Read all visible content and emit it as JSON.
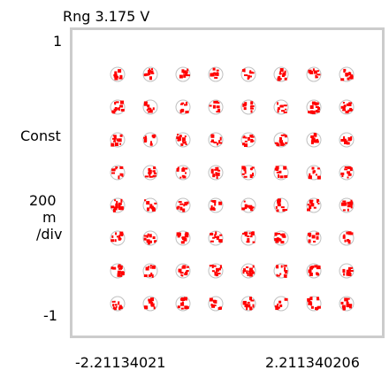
{
  "display": {
    "range_label": "Rng 3.175  V",
    "y_top": "1",
    "y_bottom": "-1",
    "y_scale": {
      "line1": "Const",
      "line2": "200",
      "line3": "m",
      "line4": "/div"
    },
    "x_left": "-2.21134021",
    "x_right": "2.211340206"
  },
  "colors": {
    "frame": "#cccccc",
    "symbol_target": "#c0c0c0",
    "symbol_hits": "#ff0000",
    "text": "#000000"
  },
  "chart_data": {
    "type": "scatter",
    "constellation": "64-QAM",
    "grid_size": 8,
    "levels": [
      -7,
      -5,
      -3,
      -1,
      1,
      3,
      5,
      7
    ],
    "series": [
      {
        "values_note": "measured symbol clusters at each ideal constellation point",
        "points": [
          {
            "i": -7,
            "q": 7
          },
          {
            "i": -5,
            "q": 7
          },
          {
            "i": -3,
            "q": 7
          },
          {
            "i": -1,
            "q": 7
          },
          {
            "i": 1,
            "q": 7
          },
          {
            "i": 3,
            "q": 7
          },
          {
            "i": 5,
            "q": 7
          },
          {
            "i": 7,
            "q": 7
          },
          {
            "i": -7,
            "q": 5
          },
          {
            "i": -5,
            "q": 5
          },
          {
            "i": -3,
            "q": 5
          },
          {
            "i": -1,
            "q": 5
          },
          {
            "i": 1,
            "q": 5
          },
          {
            "i": 3,
            "q": 5
          },
          {
            "i": 5,
            "q": 5
          },
          {
            "i": 7,
            "q": 5
          },
          {
            "i": -7,
            "q": 3
          },
          {
            "i": -5,
            "q": 3
          },
          {
            "i": -3,
            "q": 3
          },
          {
            "i": -1,
            "q": 3
          },
          {
            "i": 1,
            "q": 3
          },
          {
            "i": 3,
            "q": 3
          },
          {
            "i": 5,
            "q": 3
          },
          {
            "i": 7,
            "q": 3
          },
          {
            "i": -7,
            "q": 1
          },
          {
            "i": -5,
            "q": 1
          },
          {
            "i": -3,
            "q": 1
          },
          {
            "i": -1,
            "q": 1
          },
          {
            "i": 1,
            "q": 1
          },
          {
            "i": 3,
            "q": 1
          },
          {
            "i": 5,
            "q": 1
          },
          {
            "i": 7,
            "q": 1
          },
          {
            "i": -7,
            "q": -1
          },
          {
            "i": -5,
            "q": -1
          },
          {
            "i": -3,
            "q": -1
          },
          {
            "i": -1,
            "q": -1
          },
          {
            "i": 1,
            "q": -1
          },
          {
            "i": 3,
            "q": -1
          },
          {
            "i": 5,
            "q": -1
          },
          {
            "i": 7,
            "q": -1
          },
          {
            "i": -7,
            "q": -3
          },
          {
            "i": -5,
            "q": -3
          },
          {
            "i": -3,
            "q": -3
          },
          {
            "i": -1,
            "q": -3
          },
          {
            "i": 1,
            "q": -3
          },
          {
            "i": 3,
            "q": -3
          },
          {
            "i": 5,
            "q": -3
          },
          {
            "i": 7,
            "q": -3
          },
          {
            "i": -7,
            "q": -5
          },
          {
            "i": -5,
            "q": -5
          },
          {
            "i": -3,
            "q": -5
          },
          {
            "i": -1,
            "q": -5
          },
          {
            "i": 1,
            "q": -5
          },
          {
            "i": 3,
            "q": -5
          },
          {
            "i": 5,
            "q": -5
          },
          {
            "i": 7,
            "q": -5
          },
          {
            "i": -7,
            "q": -7
          },
          {
            "i": -5,
            "q": -7
          },
          {
            "i": -3,
            "q": -7
          },
          {
            "i": -1,
            "q": -7
          },
          {
            "i": 1,
            "q": -7
          },
          {
            "i": 3,
            "q": -7
          },
          {
            "i": 5,
            "q": -7
          },
          {
            "i": 7,
            "q": -7
          }
        ]
      }
    ]
  }
}
